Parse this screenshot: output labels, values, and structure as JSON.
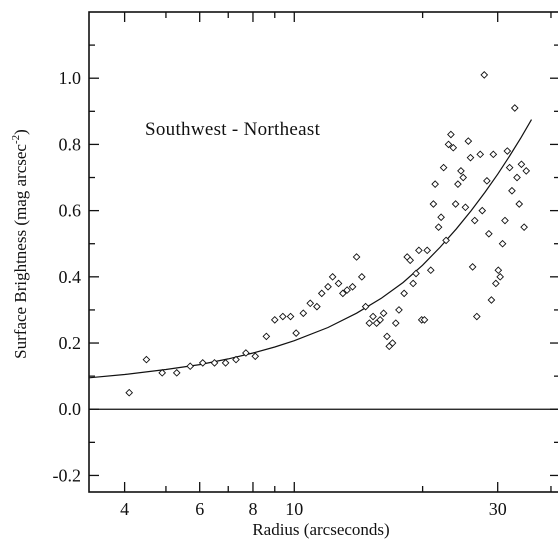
{
  "chart_data": {
    "type": "scatter",
    "title": "",
    "annotation": "Southwest - Northeast",
    "xlabel": "Radius (arcseconds)",
    "ylabel": "Surface Brightness (mag arcsec",
    "ylabel_superscript": "-2",
    "ylabel_suffix": ")",
    "x_scale": "log",
    "xlim": [
      3.3,
      42
    ],
    "ylim": [
      -0.25,
      1.2
    ],
    "x_ticks": [
      4,
      6,
      8,
      10,
      30
    ],
    "x_tick_labels": [
      "4",
      "6",
      "8",
      "10",
      "30"
    ],
    "y_ticks": [
      -0.2,
      0.0,
      0.2,
      0.4,
      0.6,
      0.8,
      1.0
    ],
    "y_tick_labels": [
      "-0.2",
      "0.0",
      "0.2",
      "0.4",
      "0.6",
      "0.8",
      "1.0"
    ],
    "zero_line": 0.0,
    "grid": false,
    "series": [
      {
        "marker": "diamond",
        "points": [
          [
            4.1,
            0.05
          ],
          [
            4.5,
            0.15
          ],
          [
            4.9,
            0.11
          ],
          [
            5.3,
            0.11
          ],
          [
            5.7,
            0.13
          ],
          [
            6.1,
            0.14
          ],
          [
            6.5,
            0.14
          ],
          [
            6.9,
            0.14
          ],
          [
            7.3,
            0.15
          ],
          [
            7.7,
            0.17
          ],
          [
            8.1,
            0.16
          ],
          [
            8.6,
            0.22
          ],
          [
            9.0,
            0.27
          ],
          [
            9.4,
            0.28
          ],
          [
            9.8,
            0.28
          ],
          [
            10.1,
            0.23
          ],
          [
            10.5,
            0.29
          ],
          [
            10.9,
            0.32
          ],
          [
            11.3,
            0.31
          ],
          [
            11.6,
            0.35
          ],
          [
            12.0,
            0.37
          ],
          [
            12.3,
            0.4
          ],
          [
            12.7,
            0.38
          ],
          [
            13.0,
            0.35
          ],
          [
            13.3,
            0.36
          ],
          [
            13.7,
            0.37
          ],
          [
            14.0,
            0.46
          ],
          [
            14.4,
            0.4
          ],
          [
            14.7,
            0.31
          ],
          [
            15.0,
            0.26
          ],
          [
            15.3,
            0.28
          ],
          [
            15.6,
            0.26
          ],
          [
            15.9,
            0.27
          ],
          [
            16.2,
            0.29
          ],
          [
            16.5,
            0.22
          ],
          [
            16.7,
            0.19
          ],
          [
            17.0,
            0.2
          ],
          [
            17.3,
            0.26
          ],
          [
            17.6,
            0.3
          ],
          [
            18.1,
            0.35
          ],
          [
            18.4,
            0.46
          ],
          [
            18.7,
            0.45
          ],
          [
            19.0,
            0.38
          ],
          [
            19.3,
            0.41
          ],
          [
            19.6,
            0.48
          ],
          [
            19.9,
            0.27
          ],
          [
            20.2,
            0.27
          ],
          [
            20.5,
            0.48
          ],
          [
            20.9,
            0.42
          ],
          [
            21.2,
            0.62
          ],
          [
            21.4,
            0.68
          ],
          [
            21.8,
            0.55
          ],
          [
            22.1,
            0.58
          ],
          [
            22.4,
            0.73
          ],
          [
            22.7,
            0.51
          ],
          [
            23.0,
            0.8
          ],
          [
            23.3,
            0.83
          ],
          [
            23.6,
            0.79
          ],
          [
            23.9,
            0.62
          ],
          [
            24.2,
            0.68
          ],
          [
            24.6,
            0.72
          ],
          [
            24.9,
            0.7
          ],
          [
            25.2,
            0.61
          ],
          [
            25.6,
            0.81
          ],
          [
            25.9,
            0.76
          ],
          [
            26.2,
            0.43
          ],
          [
            26.5,
            0.57
          ],
          [
            26.8,
            0.28
          ],
          [
            27.3,
            0.77
          ],
          [
            27.6,
            0.6
          ],
          [
            27.9,
            1.01
          ],
          [
            28.3,
            0.69
          ],
          [
            28.6,
            0.53
          ],
          [
            29.0,
            0.33
          ],
          [
            29.3,
            0.77
          ],
          [
            29.7,
            0.38
          ],
          [
            30.1,
            0.42
          ],
          [
            30.4,
            0.4
          ],
          [
            30.8,
            0.5
          ],
          [
            31.2,
            0.57
          ],
          [
            31.6,
            0.78
          ],
          [
            32.0,
            0.73
          ],
          [
            32.4,
            0.66
          ],
          [
            32.9,
            0.91
          ],
          [
            33.3,
            0.7
          ],
          [
            33.7,
            0.62
          ],
          [
            34.1,
            0.74
          ],
          [
            34.6,
            0.55
          ],
          [
            35.0,
            0.72
          ]
        ]
      }
    ],
    "fit_curve": {
      "style": "solid",
      "points": [
        [
          3.3,
          0.095
        ],
        [
          4,
          0.105
        ],
        [
          5,
          0.12
        ],
        [
          6,
          0.135
        ],
        [
          7,
          0.152
        ],
        [
          8,
          0.17
        ],
        [
          9,
          0.188
        ],
        [
          10,
          0.207
        ],
        [
          12,
          0.247
        ],
        [
          14,
          0.29
        ],
        [
          16,
          0.335
        ],
        [
          18,
          0.383
        ],
        [
          20,
          0.435
        ],
        [
          22,
          0.49
        ],
        [
          24,
          0.545
        ],
        [
          26,
          0.6
        ],
        [
          28,
          0.655
        ],
        [
          30,
          0.71
        ],
        [
          32,
          0.765
        ],
        [
          34,
          0.82
        ],
        [
          36,
          0.875
        ]
      ]
    }
  }
}
